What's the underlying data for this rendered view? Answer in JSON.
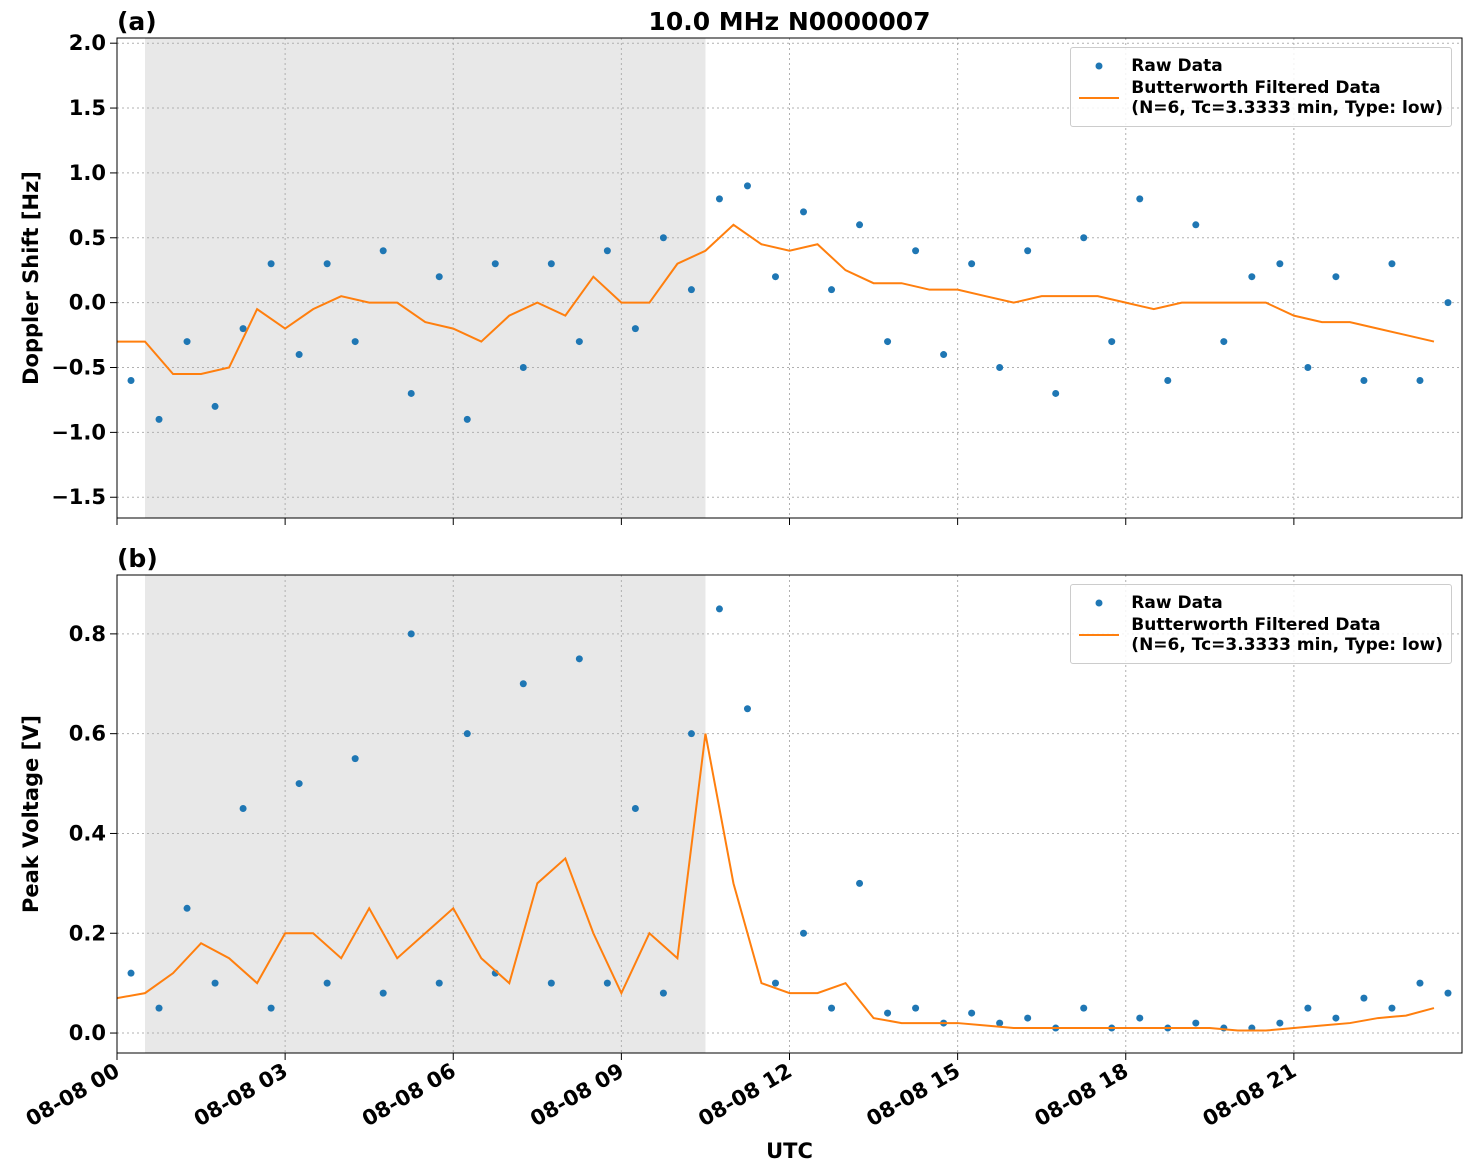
{
  "chart_data": [
    {
      "type": "scatter",
      "panel_label": "(a)",
      "title": "10.0 MHz N0000007",
      "ylabel": "Doppler Shift [Hz]",
      "xlim": [
        0,
        24
      ],
      "xticks": [
        0,
        3,
        6,
        9,
        12,
        15,
        18,
        21
      ],
      "ylim": [
        -1.66,
        2.04
      ],
      "yticks": [
        {
          "value": -1.5,
          "label": "−1.5"
        },
        {
          "value": -1.0,
          "label": "−1.0"
        },
        {
          "value": -0.5,
          "label": "−0.5"
        },
        {
          "value": 0,
          "label": "0.0"
        },
        {
          "value": 0.5,
          "label": "0.5"
        },
        {
          "value": 1.0,
          "label": "1.0"
        },
        {
          "value": 1.5,
          "label": "1.5"
        },
        {
          "value": 2.0,
          "label": "2.0"
        }
      ],
      "grid": true,
      "shade": [
        0.5,
        10.5
      ],
      "legend": "upper right",
      "series": [
        {
          "name": "Raw Data",
          "mode": "markers",
          "color": "#1f77b4",
          "x": [
            0.25,
            0.75,
            1.25,
            1.75,
            2.25,
            2.75,
            3.25,
            3.75,
            4.25,
            4.75,
            5.25,
            5.75,
            6.25,
            6.75,
            7.25,
            7.75,
            8.25,
            8.75,
            9.25,
            9.75,
            10.25,
            10.75,
            11.25,
            11.75,
            12.25,
            12.75,
            13.25,
            13.75,
            14.25,
            14.75,
            15.25,
            15.75,
            16.25,
            16.75,
            17.25,
            17.75,
            18.25,
            18.75,
            19.25,
            19.75,
            20.25,
            20.75,
            21.25,
            21.75,
            22.25,
            22.75,
            23.25,
            23.75
          ],
          "values": [
            -0.6,
            -0.9,
            -0.3,
            -0.8,
            -0.2,
            0.3,
            -0.4,
            0.3,
            -0.3,
            0.4,
            -0.7,
            0.2,
            -0.9,
            0.3,
            -0.5,
            0.3,
            -0.3,
            0.4,
            -0.2,
            0.5,
            0.1,
            0.8,
            0.9,
            0.2,
            0.7,
            0.1,
            0.6,
            -0.3,
            0.4,
            -0.4,
            0.3,
            -0.5,
            0.4,
            -0.7,
            0.5,
            -0.3,
            0.8,
            -0.6,
            0.6,
            -0.3,
            0.2,
            0.3,
            -0.5,
            0.2,
            -0.6,
            0.3,
            -0.6,
            0.0
          ]
        },
        {
          "name": "Butterworth Filtered Data\n(N=6, Tc=3.3333 min, Type: low)",
          "mode": "line",
          "color": "#ff7f0e",
          "x": [
            0,
            0.5,
            1,
            1.5,
            2,
            2.5,
            3,
            3.5,
            4,
            4.5,
            5,
            5.5,
            6,
            6.5,
            7,
            7.5,
            8,
            8.5,
            9,
            9.5,
            10,
            10.5,
            11,
            11.5,
            12,
            12.5,
            13,
            13.5,
            14,
            14.5,
            15,
            15.5,
            16,
            16.5,
            17,
            17.5,
            18,
            18.5,
            19,
            19.5,
            20,
            20.5,
            21,
            21.5,
            22,
            22.5,
            23,
            23.5
          ],
          "values": [
            -0.3,
            -0.3,
            -0.55,
            -0.55,
            -0.5,
            -0.05,
            -0.2,
            -0.05,
            0.05,
            0.0,
            0.0,
            -0.15,
            -0.2,
            -0.3,
            -0.1,
            0.0,
            -0.1,
            0.2,
            0.0,
            0.0,
            0.3,
            0.4,
            0.6,
            0.45,
            0.4,
            0.45,
            0.25,
            0.15,
            0.15,
            0.1,
            0.1,
            0.05,
            0.0,
            0.05,
            0.05,
            0.05,
            0.0,
            -0.05,
            0.0,
            0.0,
            0.0,
            0.0,
            -0.1,
            -0.15,
            -0.15,
            -0.2,
            -0.25,
            -0.3
          ]
        }
      ]
    },
    {
      "type": "scatter",
      "panel_label": "(b)",
      "ylabel": "Peak Voltage [V]",
      "xlabel": "UTC",
      "xlim": [
        0,
        24
      ],
      "xticks": [
        {
          "value": 0,
          "label": "08-08 00"
        },
        {
          "value": 3,
          "label": "08-08 03"
        },
        {
          "value": 6,
          "label": "08-08 06"
        },
        {
          "value": 9,
          "label": "08-08 09"
        },
        {
          "value": 12,
          "label": "08-08 12"
        },
        {
          "value": 15,
          "label": "08-08 15"
        },
        {
          "value": 18,
          "label": "08-08 18"
        },
        {
          "value": 21,
          "label": "08-08 21"
        }
      ],
      "ylim": [
        -0.04,
        0.918
      ],
      "yticks": [
        {
          "value": 0,
          "label": "0.0"
        },
        {
          "value": 0.2,
          "label": "0.2"
        },
        {
          "value": 0.4,
          "label": "0.4"
        },
        {
          "value": 0.6,
          "label": "0.6"
        },
        {
          "value": 0.8,
          "label": "0.8"
        }
      ],
      "grid": true,
      "shade": [
        0.5,
        10.5
      ],
      "legend": "upper right",
      "series": [
        {
          "name": "Raw Data",
          "mode": "markers",
          "color": "#1f77b4",
          "x": [
            0.25,
            0.75,
            1.25,
            1.75,
            2.25,
            2.75,
            3.25,
            3.75,
            4.25,
            4.75,
            5.25,
            5.75,
            6.25,
            6.75,
            7.25,
            7.75,
            8.25,
            8.75,
            9.25,
            9.75,
            10.25,
            10.75,
            11.25,
            11.75,
            12.25,
            12.75,
            13.25,
            13.75,
            14.25,
            14.75,
            15.25,
            15.75,
            16.25,
            16.75,
            17.25,
            17.75,
            18.25,
            18.75,
            19.25,
            19.75,
            20.25,
            20.75,
            21.25,
            21.75,
            22.25,
            22.75,
            23.25,
            23.75
          ],
          "values": [
            0.12,
            0.05,
            0.25,
            0.1,
            0.45,
            0.05,
            0.5,
            0.1,
            0.55,
            0.08,
            0.8,
            0.1,
            0.6,
            0.12,
            0.7,
            0.1,
            0.75,
            0.1,
            0.45,
            0.08,
            0.6,
            0.85,
            0.65,
            0.1,
            0.2,
            0.05,
            0.3,
            0.04,
            0.05,
            0.02,
            0.04,
            0.02,
            0.03,
            0.01,
            0.05,
            0.01,
            0.03,
            0.01,
            0.02,
            0.01,
            0.01,
            0.02,
            0.05,
            0.03,
            0.07,
            0.05,
            0.1,
            0.08
          ]
        },
        {
          "name": "Butterworth Filtered Data\n(N=6, Tc=3.3333 min, Type: low)",
          "mode": "line",
          "color": "#ff7f0e",
          "x": [
            0,
            0.5,
            1,
            1.5,
            2,
            2.5,
            3,
            3.5,
            4,
            4.5,
            5,
            5.5,
            6,
            6.5,
            7,
            7.5,
            8,
            8.5,
            9,
            9.5,
            10,
            10.5,
            11,
            11.5,
            12,
            12.5,
            13,
            13.5,
            14,
            14.5,
            15,
            15.5,
            16,
            16.5,
            17,
            17.5,
            18,
            18.5,
            19,
            19.5,
            20,
            20.5,
            21,
            21.5,
            22,
            22.5,
            23,
            23.5
          ],
          "values": [
            0.07,
            0.08,
            0.12,
            0.18,
            0.15,
            0.1,
            0.2,
            0.2,
            0.15,
            0.25,
            0.15,
            0.2,
            0.25,
            0.15,
            0.1,
            0.3,
            0.35,
            0.2,
            0.08,
            0.2,
            0.15,
            0.6,
            0.3,
            0.1,
            0.08,
            0.08,
            0.1,
            0.03,
            0.02,
            0.02,
            0.02,
            0.015,
            0.01,
            0.01,
            0.01,
            0.01,
            0.01,
            0.01,
            0.01,
            0.01,
            0.005,
            0.005,
            0.01,
            0.015,
            0.02,
            0.03,
            0.035,
            0.05
          ]
        }
      ]
    }
  ]
}
